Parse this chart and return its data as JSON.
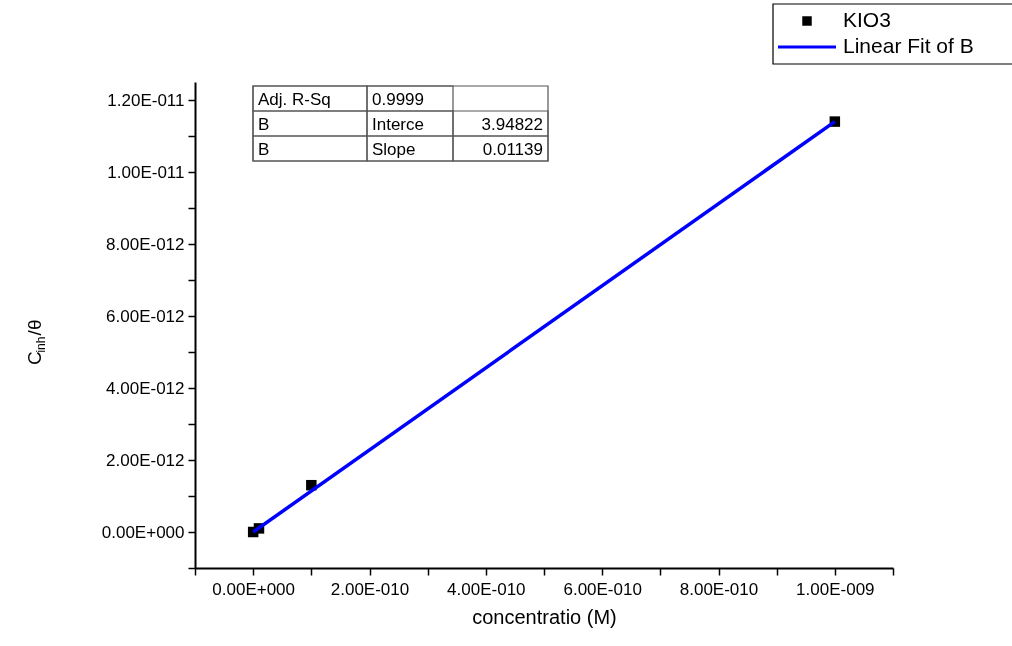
{
  "chart_data": {
    "type": "scatter",
    "xlabel": "concentratio (M)",
    "ylabel": "C$_{inh}$/θ",
    "series": [
      {
        "name": "KIO3",
        "color": "#000000",
        "marker": "square",
        "x": [
          0,
          1e-11,
          1e-10,
          1e-09
        ],
        "values": [
          0,
          1e-13,
          1.3e-12,
          1.14e-11
        ]
      },
      {
        "name": "Linear Fit of B",
        "type": "line",
        "color": "#0000ff",
        "marker": "none",
        "line_style": "solid",
        "x": [
          0,
          1e-09
        ],
        "values": [
          0,
          1.14e-11
        ]
      }
    ],
    "xlim": [
      -1e-10,
      1.1e-09
    ],
    "xticks": [
      {
        "value": -1e-10,
        "label": null
      },
      {
        "value": 0,
        "label": "0.00E+000"
      },
      {
        "value": 1e-10,
        "label": null
      },
      {
        "value": 2e-10,
        "label": "2.00E-010"
      },
      {
        "value": 3e-10,
        "label": null
      },
      {
        "value": 4e-10,
        "label": "4.00E-010"
      },
      {
        "value": 5e-10,
        "label": null
      },
      {
        "value": 6e-10,
        "label": "6.00E-010"
      },
      {
        "value": 7e-10,
        "label": null
      },
      {
        "value": 8e-10,
        "label": "8.00E-010"
      },
      {
        "value": 9e-10,
        "label": null
      },
      {
        "value": 1e-09,
        "label": "1.00E-009"
      },
      {
        "value": 1.1e-09,
        "label": null
      }
    ],
    "ylim": [
      -1e-12,
      1.25e-11
    ],
    "yticks": [
      {
        "value": -1e-12,
        "label": null
      },
      {
        "value": 0,
        "label": "0.00E+000"
      },
      {
        "value": 1e-12,
        "label": null
      },
      {
        "value": 2e-12,
        "label": "2.00E-012"
      },
      {
        "value": 3e-12,
        "label": null
      },
      {
        "value": 4e-12,
        "label": "4.00E-012"
      },
      {
        "value": 5e-12,
        "label": null
      },
      {
        "value": 6e-12,
        "label": "6.00E-012"
      },
      {
        "value": 7e-12,
        "label": null
      },
      {
        "value": 8e-12,
        "label": "8.00E-012"
      },
      {
        "value": 9e-12,
        "label": null
      },
      {
        "value": 1e-11,
        "label": "1.00E-011"
      },
      {
        "value": 1.1e-11,
        "label": null
      },
      {
        "value": 1.2e-11,
        "label": "1.20E-011"
      }
    ],
    "annotations": [
      "Adj. R-Sq",
      "0.9999",
      "B",
      "Interce",
      "3.94822",
      "B",
      "Slope",
      "0.01139"
    ],
    "grid": false,
    "legend": "top right"
  }
}
